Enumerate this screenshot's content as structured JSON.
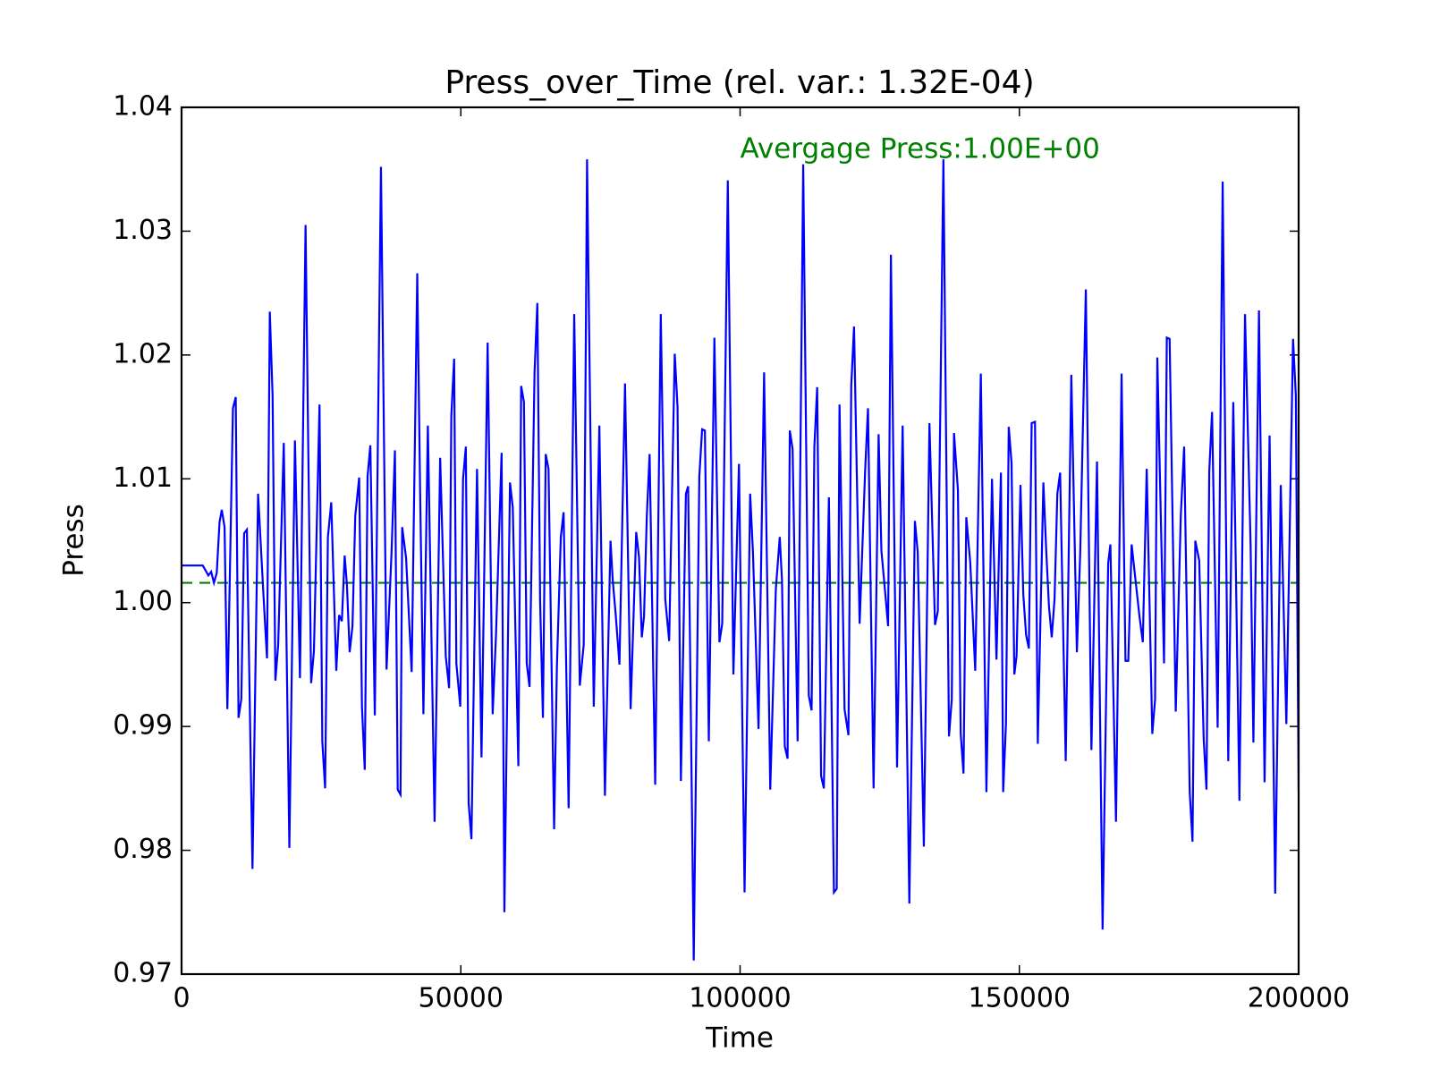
{
  "chart_data": {
    "type": "line",
    "title": "Press_over_Time (rel. var.: 1.32E-04)",
    "x_label": "Time",
    "y_label": "Press",
    "annotation": {
      "text": "Avergage Press:1.00E+00",
      "color": "#008000"
    },
    "mean_line": {
      "value": 1.0016,
      "color": "#008000",
      "style": "dashed"
    },
    "xlim": [
      0,
      200000
    ],
    "xticks": [
      0,
      50000,
      100000,
      150000,
      200000
    ],
    "ylim": [
      0.97,
      1.04
    ],
    "yticks": [
      0.97,
      0.98,
      0.99,
      {
        "value": 1,
        "label": "1.00"
      },
      1.01,
      1.02,
      1.03,
      1.04
    ],
    "grid": false,
    "x": [
      0,
      3800,
      4800,
      5300,
      5800,
      6300,
      6800,
      7200,
      7700,
      8200,
      9200,
      9700,
      10200,
      10700,
      11200,
      11700,
      12700,
      13700,
      14700,
      15300,
      15800,
      16300,
      16800,
      17300,
      18300,
      19300,
      20300,
      21200,
      22200,
      23200,
      23700,
      24700,
      25200,
      25700,
      26200,
      26800,
      27700,
      28200,
      28700,
      29200,
      29600,
      30100,
      30600,
      31100,
      31800,
      32300,
      32800,
      33300,
      33800,
      34600,
      35700,
      36700,
      37600,
      38200,
      38700,
      39200,
      39500,
      40200,
      41200,
      42200,
      42700,
      43300,
      44100,
      45300,
      46300,
      47300,
      47900,
      48300,
      48800,
      49200,
      49900,
      50400,
      50900,
      51400,
      51900,
      52900,
      53700,
      54800,
      55700,
      56300,
      57300,
      57800,
      58800,
      59300,
      60300,
      60800,
      61300,
      61800,
      62300,
      63200,
      63700,
      64200,
      64700,
      65200,
      65700,
      66700,
      67200,
      67900,
      68400,
      69300,
      70300,
      71300,
      72000,
      72600,
      73800,
      74800,
      75800,
      76800,
      77200,
      77700,
      78400,
      79400,
      80400,
      81400,
      81900,
      82400,
      82800,
      83300,
      83800,
      84800,
      85800,
      86600,
      87300,
      88300,
      88800,
      89400,
      90300,
      90700,
      91700,
      92700,
      93200,
      93700,
      94400,
      95400,
      96300,
      96800,
      97800,
      98800,
      99800,
      100800,
      101800,
      102300,
      103300,
      104300,
      105400,
      106400,
      107100,
      107500,
      108000,
      108500,
      108900,
      109400,
      110300,
      111300,
      112300,
      112800,
      113300,
      113800,
      114500,
      115000,
      115900,
      116800,
      117300,
      117800,
      118700,
      119400,
      119900,
      120400,
      121400,
      122400,
      122900,
      123900,
      124800,
      125300,
      126000,
      126500,
      127000,
      128100,
      129100,
      130300,
      131300,
      131800,
      132900,
      133900,
      134900,
      135400,
      136400,
      137400,
      137900,
      138300,
      139000,
      139500,
      140000,
      140500,
      141200,
      142100,
      143100,
      144100,
      145100,
      145900,
      146700,
      147100,
      147600,
      148100,
      148600,
      149100,
      149500,
      150200,
      150700,
      151200,
      151700,
      152200,
      152800,
      153300,
      154300,
      154800,
      155300,
      155800,
      156300,
      156800,
      157300,
      158300,
      159300,
      160300,
      160900,
      161900,
      162900,
      163900,
      164900,
      165900,
      166300,
      167300,
      168300,
      169000,
      169500,
      170100,
      170800,
      171500,
      172100,
      172800,
      173800,
      174300,
      174700,
      175900,
      176400,
      176900,
      178000,
      178900,
      179500,
      180500,
      181000,
      181500,
      182200,
      183000,
      183500,
      184000,
      184500,
      185500,
      186400,
      187400,
      188300,
      189400,
      190400,
      191400,
      191900,
      192900,
      193900,
      194800,
      195800,
      196800,
      197800,
      199000,
      199500,
      200000
    ],
    "series": [
      {
        "color": "#0000ff",
        "values": [
          1.003,
          1.003,
          1.0022,
          1.0025,
          1.0016,
          1.0024,
          1.0065,
          1.0075,
          1.0061,
          0.9914,
          1.0157,
          1.0166,
          0.9907,
          0.9922,
          1.0056,
          1.0059,
          0.9785,
          1.0088,
          1.0003,
          0.9955,
          1.0235,
          1.0167,
          0.9937,
          0.9966,
          1.0129,
          0.9802,
          1.0131,
          0.9939,
          1.0305,
          0.9935,
          0.9961,
          1.016,
          0.9888,
          0.985,
          1.0053,
          1.0081,
          0.9945,
          0.999,
          0.9985,
          1.0038,
          1.0015,
          0.996,
          0.9981,
          1.007,
          1.0101,
          0.9916,
          0.9865,
          1.0102,
          1.0127,
          0.9909,
          1.0352,
          0.9946,
          1.0041,
          1.0123,
          0.9849,
          0.9845,
          1.0061,
          1.0036,
          0.9944,
          1.0266,
          1.0094,
          0.991,
          1.0143,
          0.9823,
          1.0117,
          0.9957,
          0.9931,
          1.0151,
          1.0197,
          0.9951,
          0.9916,
          1.01,
          1.0126,
          0.9838,
          0.9809,
          1.0108,
          0.9875,
          1.021,
          0.991,
          0.9974,
          1.0121,
          0.975,
          1.0097,
          1.0077,
          0.9868,
          1.0175,
          1.0162,
          0.9951,
          0.9932,
          1.0186,
          1.0242,
          1.0,
          0.9907,
          1.012,
          1.0108,
          0.9817,
          0.9948,
          1.0053,
          1.0073,
          0.9834,
          1.0233,
          0.9933,
          0.9966,
          1.0358,
          0.9916,
          1.0143,
          0.9844,
          1.005,
          1.0018,
          0.9992,
          0.995,
          1.0177,
          0.9914,
          1.0057,
          1.0037,
          0.9972,
          0.9989,
          1.007,
          1.012,
          0.9853,
          1.0233,
          1.0003,
          0.9969,
          1.0201,
          1.0158,
          0.9856,
          1.0088,
          1.0094,
          0.9711,
          1.0102,
          1.014,
          1.0139,
          0.9888,
          1.0214,
          0.9968,
          0.9983,
          1.0341,
          0.9942,
          1.0112,
          0.9766,
          1.0088,
          1.0041,
          0.9898,
          1.0186,
          0.9849,
          1.0011,
          1.0053,
          1.0018,
          0.9884,
          0.9874,
          1.0139,
          1.0124,
          0.9888,
          1.0354,
          0.9925,
          0.9913,
          1.0126,
          1.0174,
          0.986,
          0.985,
          1.0085,
          0.9766,
          0.9769,
          1.016,
          0.9914,
          0.9893,
          1.0175,
          1.0223,
          0.9983,
          1.0108,
          1.0157,
          0.985,
          1.0136,
          1.0042,
          1.0007,
          0.9981,
          1.0281,
          0.9867,
          1.0143,
          0.9757,
          1.0066,
          1.0041,
          0.9803,
          1.0145,
          0.9982,
          0.9993,
          1.0358,
          0.9892,
          0.9922,
          1.0137,
          1.0091,
          0.9894,
          0.9862,
          1.0069,
          1.0033,
          0.9945,
          1.0185,
          0.9847,
          1.01,
          0.9954,
          1.0105,
          0.9847,
          0.9902,
          1.0142,
          1.0113,
          0.9942,
          0.9957,
          1.0095,
          1.0007,
          0.9974,
          0.9963,
          1.0145,
          1.0146,
          0.9886,
          1.0097,
          1.0043,
          0.9997,
          0.9972,
          1.0003,
          1.0088,
          1.0105,
          0.9872,
          1.0184,
          0.996,
          1.0041,
          1.0253,
          0.9881,
          1.0114,
          0.9736,
          1.0032,
          1.0047,
          0.9823,
          1.0185,
          0.9953,
          0.9953,
          1.0047,
          1.0018,
          0.9989,
          0.9968,
          1.0108,
          0.9894,
          0.9922,
          1.0198,
          0.9951,
          1.0214,
          1.0213,
          0.9912,
          1.007,
          1.0126,
          0.9847,
          0.9807,
          1.005,
          1.0034,
          0.989,
          0.9849,
          1.0106,
          1.0154,
          0.9899,
          1.034,
          0.9872,
          1.0162,
          0.984,
          1.0233,
          1.0047,
          0.9887,
          1.0236,
          0.9855,
          1.0135,
          0.9765,
          1.0095,
          0.9902,
          1.0213,
          1.0167,
          0.9847
        ]
      }
    ]
  }
}
